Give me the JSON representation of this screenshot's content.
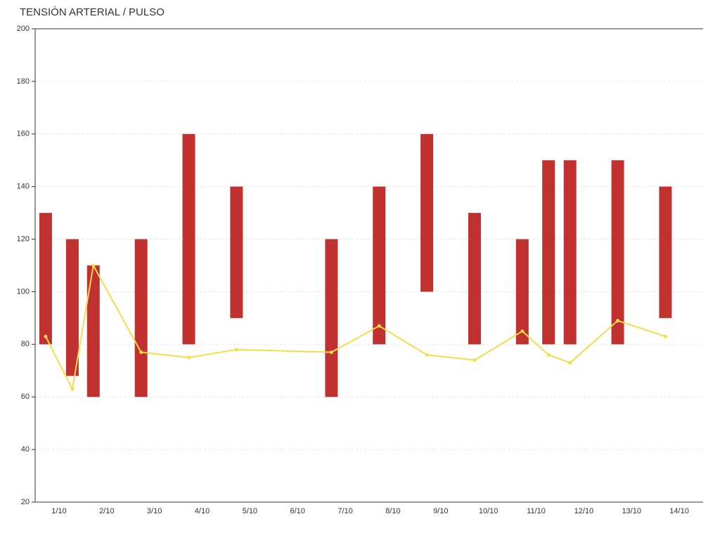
{
  "chart_data": {
    "type": "combo",
    "title": "TENSIÓN ARTERIAL / PULSO",
    "x": [
      0.72,
      1.28,
      1.72,
      2.72,
      3.72,
      4.72,
      6.71,
      7.71,
      8.71,
      9.71,
      10.71,
      11.26,
      11.71,
      12.71,
      13.71
    ],
    "ranges": {
      "color": "#c0312f",
      "low": [
        80,
        68,
        60,
        60,
        80,
        90,
        60,
        80,
        100,
        80,
        80,
        80,
        80,
        80,
        90
      ],
      "high": [
        130,
        120,
        110,
        120,
        160,
        140,
        120,
        140,
        160,
        130,
        120,
        150,
        150,
        150,
        140
      ]
    },
    "line": {
      "color": "#f5dc4a",
      "values": [
        83,
        63,
        110,
        77,
        75,
        78,
        77,
        87,
        76,
        74,
        85,
        76,
        73,
        89,
        83
      ]
    },
    "xlim": [
      0.5,
      14.5
    ],
    "xticks": [
      {
        "value": 1,
        "label": "1/10"
      },
      {
        "value": 2,
        "label": "2/10"
      },
      {
        "value": 3,
        "label": "3/10"
      },
      {
        "value": 4,
        "label": "4/10"
      },
      {
        "value": 5,
        "label": "5/10"
      },
      {
        "value": 6,
        "label": "6/10"
      },
      {
        "value": 7,
        "label": "7/10"
      },
      {
        "value": 8,
        "label": "8/10"
      },
      {
        "value": 9,
        "label": "9/10"
      },
      {
        "value": 10,
        "label": "10/10"
      },
      {
        "value": 11,
        "label": "11/10"
      },
      {
        "value": 12,
        "label": "12/10"
      },
      {
        "value": 13,
        "label": "13/10"
      },
      {
        "value": 14,
        "label": "14/10"
      }
    ],
    "ylim": [
      20,
      200
    ],
    "yticks": [
      20,
      40,
      60,
      80,
      100,
      120,
      140,
      160,
      180,
      200
    ],
    "grid": true
  }
}
